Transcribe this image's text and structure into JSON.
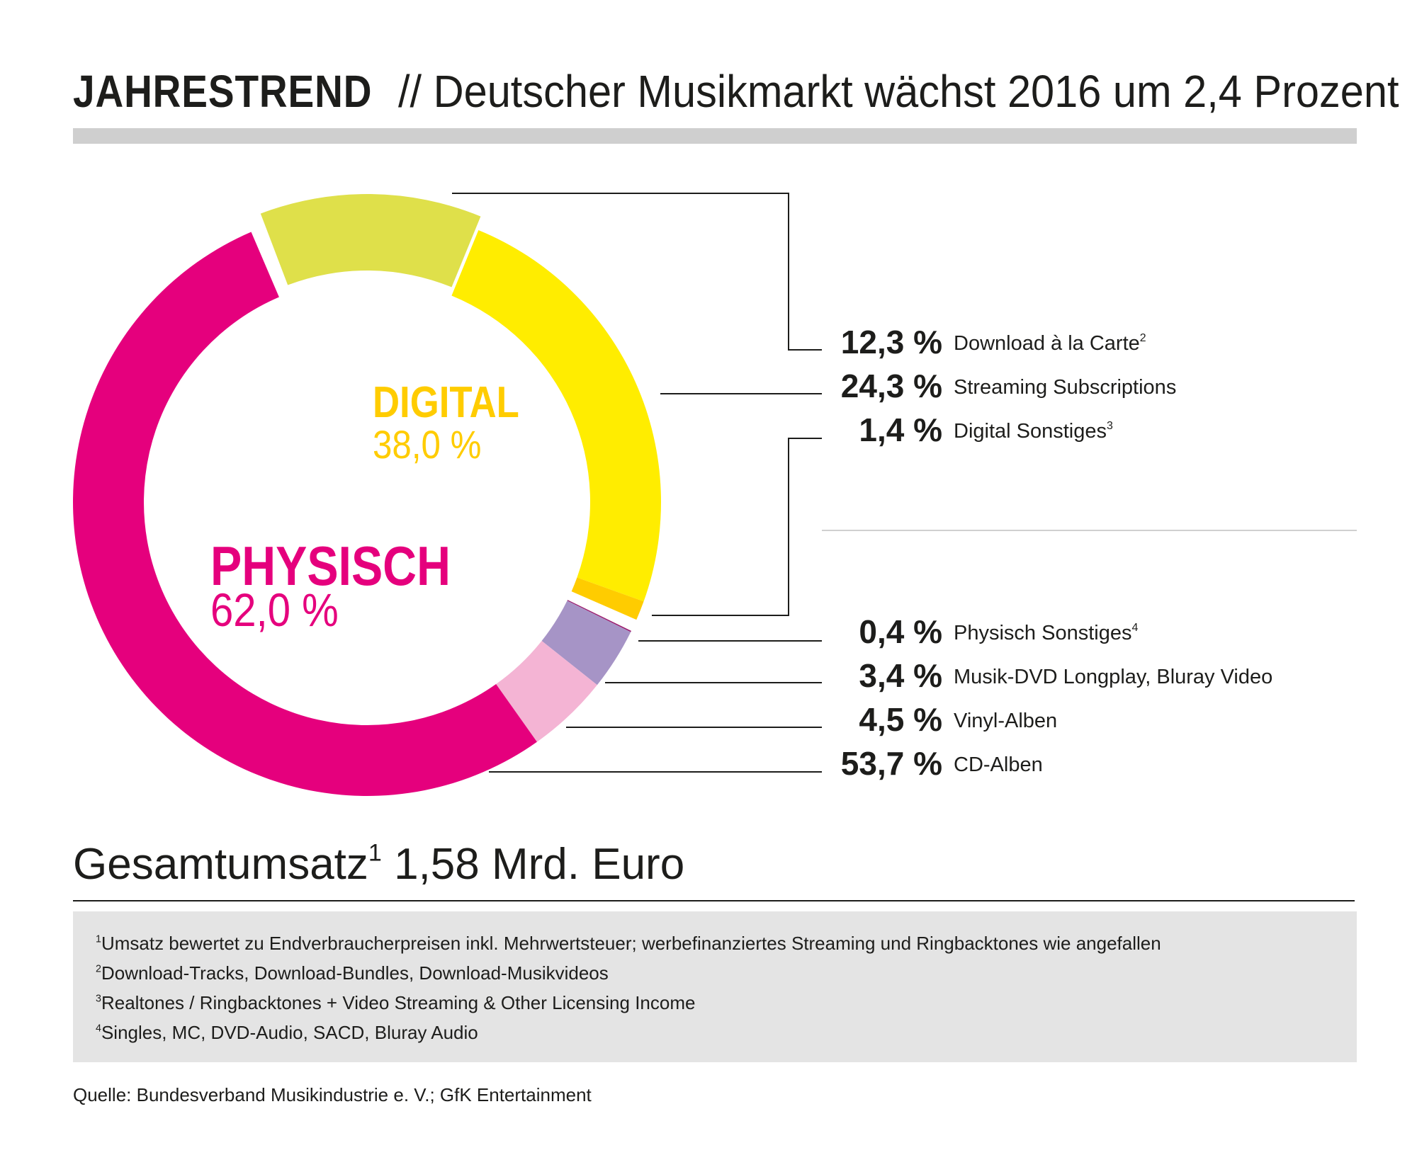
{
  "header": {
    "title_bold": "JAHRESTREND",
    "title_rest": "// Deutscher Musikmarkt wächst 2016 um 2,4 Prozent"
  },
  "center_labels": {
    "digital": {
      "label": "DIGITAL",
      "value": "38,0 %",
      "color": "#ffcc00"
    },
    "physical": {
      "label": "PHYSISCH",
      "value": "62,0 %",
      "color": "#e5007d"
    }
  },
  "legend": [
    {
      "pct": "12,3 %",
      "label": "Download à la Carte",
      "sup": "2"
    },
    {
      "pct": "24,3 %",
      "label": "Streaming Subscriptions",
      "sup": ""
    },
    {
      "pct": "1,4 %",
      "label": "Digital Sonstiges",
      "sup": "3"
    },
    {
      "pct": "0,4 %",
      "label": "Physisch Sonstiges",
      "sup": "4"
    },
    {
      "pct": "3,4 %",
      "label": "Musik-DVD Longplay, Bluray Video",
      "sup": ""
    },
    {
      "pct": "4,5 %",
      "label": "Vinyl-Alben",
      "sup": ""
    },
    {
      "pct": "53,7 %",
      "label": "CD-Alben",
      "sup": ""
    }
  ],
  "chart_data": {
    "type": "pie",
    "variant": "donut",
    "title": "",
    "unit": "%",
    "categories": [
      "Download à la Carte",
      "Streaming Subscriptions",
      "Digital Sonstiges",
      "Physisch Sonstiges",
      "Musik-DVD Longplay, Bluray Video",
      "Vinyl-Alben",
      "CD-Alben"
    ],
    "values": [
      12.3,
      24.3,
      1.4,
      0.4,
      3.4,
      4.5,
      53.7
    ],
    "groups": [
      {
        "name": "DIGITAL",
        "total": 38.0,
        "members": [
          "Download à la Carte",
          "Streaming Subscriptions",
          "Digital Sonstiges"
        ]
      },
      {
        "name": "PHYSISCH",
        "total": 62.0,
        "members": [
          "Physisch Sonstiges",
          "Musik-DVD Longplay, Bluray Video",
          "Vinyl-Alben",
          "CD-Alben"
        ]
      }
    ],
    "colors": [
      "#dfe04a",
      "#ffed00",
      "#ffcc00",
      "#9b1d6e",
      "#a694c6",
      "#f4b4d4",
      "#e5007d"
    ],
    "legend_position": "right"
  },
  "total": {
    "label": "Gesamtumsatz",
    "sup": "1",
    "value": "1,58 Mrd. Euro"
  },
  "footnotes": [
    {
      "num": "1",
      "text": "Umsatz bewertet zu Endverbraucherpreisen inkl. Mehrwertsteuer; werbefinanziertes Streaming und Ringbacktones wie angefallen"
    },
    {
      "num": "2",
      "text": "Download-Tracks, Download-Bundles, Download-Musikvideos"
    },
    {
      "num": "3",
      "text": "Realtones / Ringbacktones + Video Streaming & Other Licensing Income"
    },
    {
      "num": "4",
      "text": "Singles, MC, DVD-Audio, SACD, Bluray Audio"
    }
  ],
  "source": "Quelle: Bundesverband Musikindustrie e. V.; GfK Entertainment"
}
